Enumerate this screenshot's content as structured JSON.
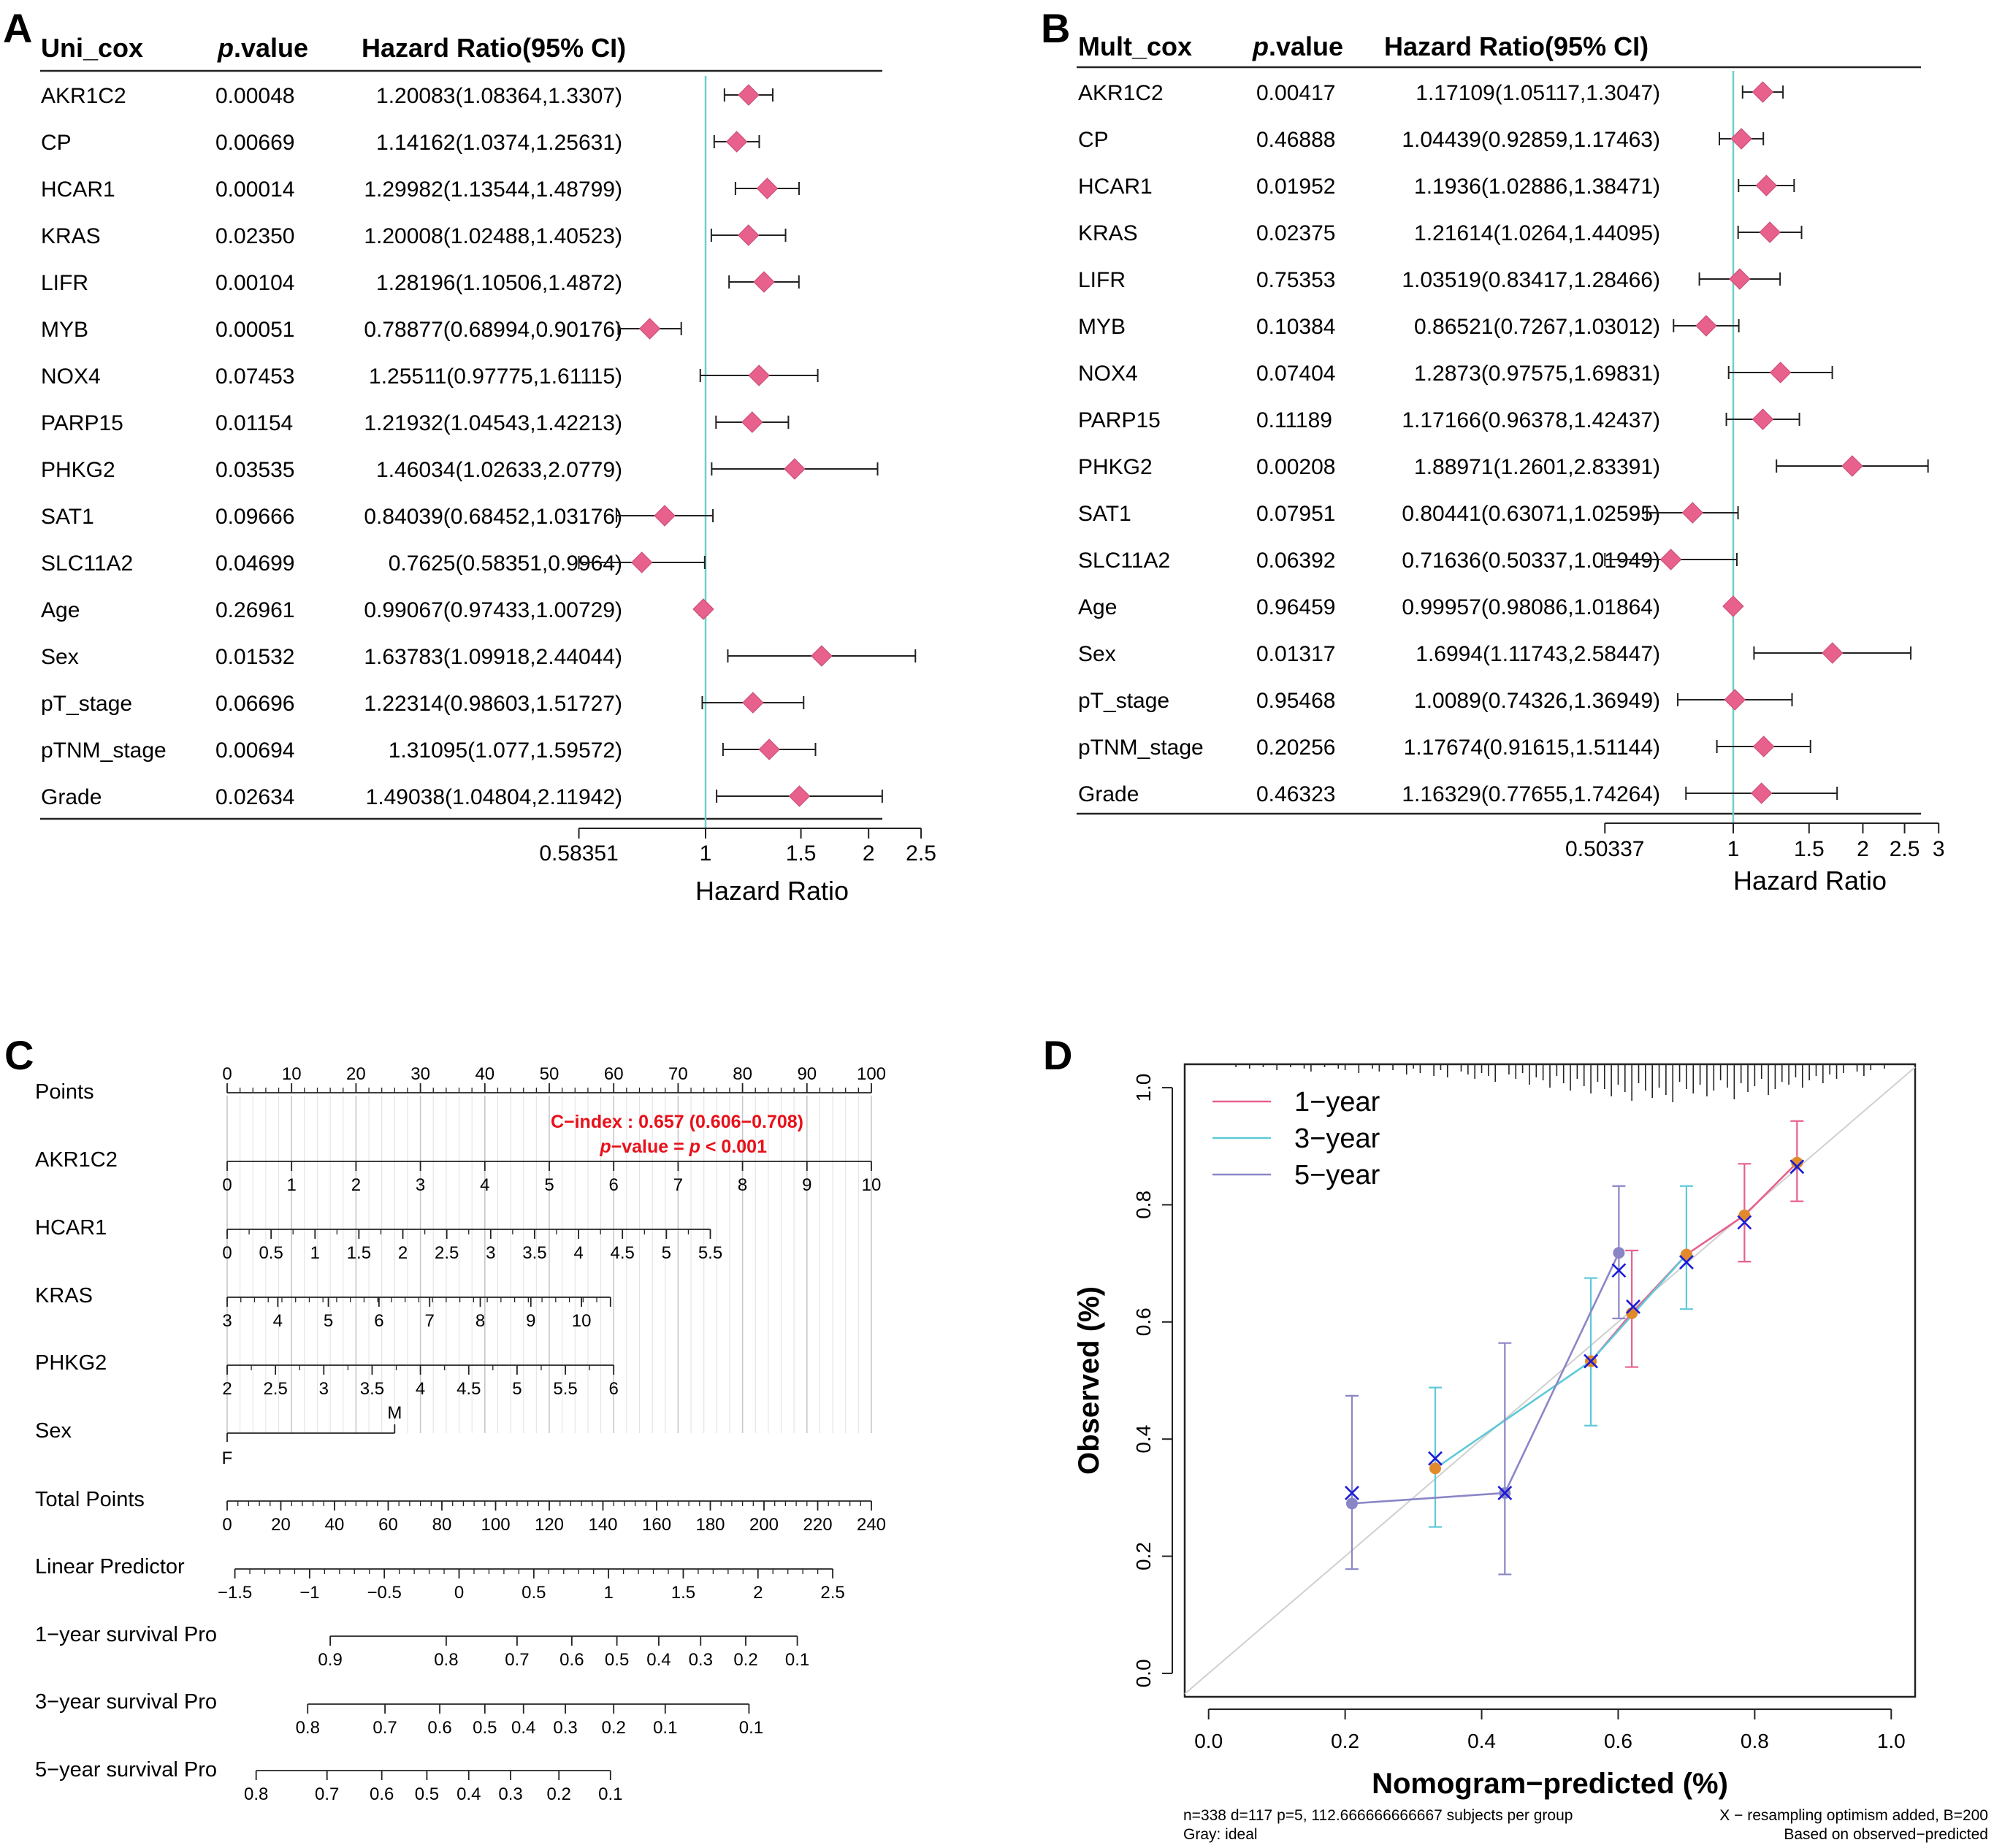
{
  "panels": {
    "A": {
      "letter": "A",
      "col_model": "Uni_cox",
      "col_p_italic": "p",
      "col_p_rest": ".value",
      "col_hr": "Hazard Ratio(95% CI)",
      "axis_title": "Hazard Ratio",
      "axis_ticks": [
        0.58351,
        1,
        1.5,
        2,
        2.5
      ],
      "axis_tick_labels": [
        "0.58351",
        "1",
        "1.5",
        "2",
        "2.5"
      ]
    },
    "B": {
      "letter": "B",
      "col_model": "Mult_cox",
      "col_p_italic": "p",
      "col_p_rest": ".value",
      "col_hr": "Hazard Ratio(95% CI)",
      "axis_title": "Hazard Ratio",
      "axis_ticks": [
        0.50337,
        1,
        1.5,
        2,
        2.5,
        3
      ],
      "axis_tick_labels": [
        "0.50337",
        "1",
        "1.5",
        "2",
        "2.5",
        "3"
      ]
    },
    "C": {
      "letter": "C"
    },
    "D": {
      "letter": "D"
    }
  },
  "chart_data": [
    {
      "type": "forest",
      "panel": "A",
      "title": "Uni_cox",
      "xlabel": "Hazard Ratio",
      "reference_line": 1,
      "accent_color": "#e8608c",
      "ref_color": "#6fcfc8",
      "rows": [
        {
          "name": "AKR1C2",
          "p": "0.00048",
          "hr_text": "1.20083(1.08364,1.3307)",
          "hr": 1.20083,
          "lo": 1.08364,
          "hi": 1.3307
        },
        {
          "name": "CP",
          "p": "0.00669",
          "hr_text": "1.14162(1.0374,1.25631)",
          "hr": 1.14162,
          "lo": 1.0374,
          "hi": 1.25631
        },
        {
          "name": "HCAR1",
          "p": "0.00014",
          "hr_text": "1.29982(1.13544,1.48799)",
          "hr": 1.29982,
          "lo": 1.13544,
          "hi": 1.48799
        },
        {
          "name": "KRAS",
          "p": "0.02350",
          "hr_text": "1.20008(1.02488,1.40523)",
          "hr": 1.20008,
          "lo": 1.02488,
          "hi": 1.40523
        },
        {
          "name": "LIFR",
          "p": "0.00104",
          "hr_text": "1.28196(1.10506,1.4872)",
          "hr": 1.28196,
          "lo": 1.10506,
          "hi": 1.4872
        },
        {
          "name": "MYB",
          "p": "0.00051",
          "hr_text": "0.78877(0.68994,0.90176)",
          "hr": 0.78877,
          "lo": 0.68994,
          "hi": 0.90176
        },
        {
          "name": "NOX4",
          "p": "0.07453",
          "hr_text": "1.25511(0.97775,1.61115)",
          "hr": 1.25511,
          "lo": 0.97775,
          "hi": 1.61115
        },
        {
          "name": "PARP15",
          "p": "0.01154",
          "hr_text": "1.21932(1.04543,1.42213)",
          "hr": 1.21932,
          "lo": 1.04543,
          "hi": 1.42213
        },
        {
          "name": "PHKG2",
          "p": "0.03535",
          "hr_text": "1.46034(1.02633,2.0779)",
          "hr": 1.46034,
          "lo": 1.02633,
          "hi": 2.0779
        },
        {
          "name": "SAT1",
          "p": "0.09666",
          "hr_text": "0.84039(0.68452,1.03176)",
          "hr": 0.84039,
          "lo": 0.68452,
          "hi": 1.03176
        },
        {
          "name": "SLC11A2",
          "p": "0.04699",
          "hr_text": "0.7625(0.58351,0.9964)",
          "hr": 0.7625,
          "lo": 0.58351,
          "hi": 0.9964
        },
        {
          "name": "Age",
          "p": "0.26961",
          "hr_text": "0.99067(0.97433,1.00729)",
          "hr": 0.99067,
          "lo": 0.97433,
          "hi": 1.00729
        },
        {
          "name": "Sex",
          "p": "0.01532",
          "hr_text": "1.63783(1.09918,2.44044)",
          "hr": 1.63783,
          "lo": 1.09918,
          "hi": 2.44044
        },
        {
          "name": "pT_stage",
          "p": "0.06696",
          "hr_text": "1.22314(0.98603,1.51727)",
          "hr": 1.22314,
          "lo": 0.98603,
          "hi": 1.51727
        },
        {
          "name": "pTNM_stage",
          "p": "0.00694",
          "hr_text": "1.31095(1.077,1.59572)",
          "hr": 1.31095,
          "lo": 1.077,
          "hi": 1.59572
        },
        {
          "name": "Grade",
          "p": "0.02634",
          "hr_text": "1.49038(1.04804,2.11942)",
          "hr": 1.49038,
          "lo": 1.04804,
          "hi": 2.11942
        }
      ]
    },
    {
      "type": "forest",
      "panel": "B",
      "title": "Mult_cox",
      "xlabel": "Hazard Ratio",
      "reference_line": 1,
      "accent_color": "#e8608c",
      "ref_color": "#6fcfc8",
      "rows": [
        {
          "name": "AKR1C2",
          "p": "0.00417",
          "hr_text": "1.17109(1.05117,1.3047)",
          "hr": 1.17109,
          "lo": 1.05117,
          "hi": 1.3047
        },
        {
          "name": "CP",
          "p": "0.46888",
          "hr_text": "1.04439(0.92859,1.17463)",
          "hr": 1.04439,
          "lo": 0.92859,
          "hi": 1.17463
        },
        {
          "name": "HCAR1",
          "p": "0.01952",
          "hr_text": "1.1936(1.02886,1.38471)",
          "hr": 1.1936,
          "lo": 1.02886,
          "hi": 1.38471
        },
        {
          "name": "KRAS",
          "p": "0.02375",
          "hr_text": "1.21614(1.0264,1.44095)",
          "hr": 1.21614,
          "lo": 1.0264,
          "hi": 1.44095
        },
        {
          "name": "LIFR",
          "p": "0.75353",
          "hr_text": "1.03519(0.83417,1.28466)",
          "hr": 1.03519,
          "lo": 0.83417,
          "hi": 1.28466
        },
        {
          "name": "MYB",
          "p": "0.10384",
          "hr_text": "0.86521(0.7267,1.03012)",
          "hr": 0.86521,
          "lo": 0.7267,
          "hi": 1.03012
        },
        {
          "name": "NOX4",
          "p": "0.07404",
          "hr_text": "1.2873(0.97575,1.69831)",
          "hr": 1.2873,
          "lo": 0.97575,
          "hi": 1.69831
        },
        {
          "name": "PARP15",
          "p": "0.11189",
          "hr_text": "1.17166(0.96378,1.42437)",
          "hr": 1.17166,
          "lo": 0.96378,
          "hi": 1.42437
        },
        {
          "name": "PHKG2",
          "p": "0.00208",
          "hr_text": "1.88971(1.2601,2.83391)",
          "hr": 1.88971,
          "lo": 1.2601,
          "hi": 2.83391
        },
        {
          "name": "SAT1",
          "p": "0.07951",
          "hr_text": "0.80441(0.63071,1.02595)",
          "hr": 0.80441,
          "lo": 0.63071,
          "hi": 1.02595
        },
        {
          "name": "SLC11A2",
          "p": "0.06392",
          "hr_text": "0.71636(0.50337,1.01949)",
          "hr": 0.71636,
          "lo": 0.50337,
          "hi": 1.01949
        },
        {
          "name": "Age",
          "p": "0.96459",
          "hr_text": "0.99957(0.98086,1.01864)",
          "hr": 0.99957,
          "lo": 0.98086,
          "hi": 1.01864
        },
        {
          "name": "Sex",
          "p": "0.01317",
          "hr_text": "1.6994(1.11743,2.58447)",
          "hr": 1.6994,
          "lo": 1.11743,
          "hi": 2.58447
        },
        {
          "name": "pT_stage",
          "p": "0.95468",
          "hr_text": "1.0089(0.74326,1.36949)",
          "hr": 1.0089,
          "lo": 0.74326,
          "hi": 1.36949
        },
        {
          "name": "pTNM_stage",
          "p": "0.20256",
          "hr_text": "1.17674(0.91615,1.51144)",
          "hr": 1.17674,
          "lo": 0.91615,
          "hi": 1.51144
        },
        {
          "name": "Grade",
          "p": "0.46323",
          "hr_text": "1.16329(0.77655,1.74264)",
          "hr": 1.16329,
          "lo": 0.77655,
          "hi": 1.74264
        }
      ]
    },
    {
      "type": "nomogram",
      "panel": "C",
      "cindex_text": "C−index : 0.657 (0.606−0.708)",
      "pvalue_italic": "p",
      "pvalue_rest": "−value = ",
      "pvalue_italic2": "p",
      "pvalue_rest2": " < 0.001",
      "annotation_color": "#e8101a",
      "points_max": 100,
      "scales": [
        {
          "label": "Points",
          "labels_above": true,
          "pts": [
            0,
            10,
            20,
            30,
            40,
            50,
            60,
            70,
            80,
            90,
            100
          ],
          "labels": [
            "0",
            "10",
            "20",
            "30",
            "40",
            "50",
            "60",
            "70",
            "80",
            "90",
            "100"
          ],
          "minor": 50
        },
        {
          "label": "AKR1C2",
          "pts": [
            0,
            10,
            20,
            30,
            40,
            50,
            60,
            70,
            80,
            90,
            100
          ],
          "labels": [
            "0",
            "1",
            "2",
            "3",
            "4",
            "5",
            "6",
            "7",
            "8",
            "9",
            "10"
          ]
        },
        {
          "label": "HCAR1",
          "pts": [
            0,
            6.82,
            13.64,
            20.45,
            27.27,
            34.09,
            40.91,
            47.73,
            54.55,
            61.36,
            68.18,
            75
          ],
          "labels": [
            "0",
            "0.5",
            "1",
            "1.5",
            "2",
            "2.5",
            "3",
            "3.5",
            "4",
            "4.5",
            "5",
            "5.5"
          ],
          "minor": 22
        },
        {
          "label": "KRAS",
          "pts": [
            0,
            7.86,
            15.71,
            23.57,
            31.43,
            39.29,
            47.14,
            55,
            59.5
          ],
          "labels": [
            "3",
            "4",
            "5",
            "6",
            "7",
            "8",
            "9",
            "10",
            ""
          ],
          "minor": 28
        },
        {
          "label": "PHKG2",
          "pts": [
            0,
            7.5,
            15,
            22.5,
            30,
            37.5,
            45,
            52.5,
            60
          ],
          "labels": [
            "2",
            "2.5",
            "3",
            "3.5",
            "4",
            "4.5",
            "5",
            "5.5",
            "6"
          ],
          "minor": 16
        },
        {
          "label": "Sex",
          "pts": [
            0,
            26
          ],
          "labels": [
            "F",
            "M"
          ],
          "sex": true
        },
        {
          "label": "Total Points",
          "pts": [
            0,
            8.33,
            16.67,
            25,
            33.33,
            41.67,
            50,
            58.33,
            66.67,
            75,
            83.33,
            91.67,
            100
          ],
          "labels": [
            "0",
            "20",
            "40",
            "60",
            "80",
            "100",
            "120",
            "140",
            "160",
            "180",
            "200",
            "220",
            "240"
          ],
          "minor": 60
        },
        {
          "label": "Linear Predictor",
          "pts": [
            1.2,
            12.8,
            24.4,
            36,
            47.6,
            59.2,
            70.8,
            82.4,
            94
          ],
          "labels": [
            "−1.5",
            "−1",
            "−0.5",
            "0",
            "0.5",
            "1",
            "1.5",
            "2",
            "2.5"
          ],
          "minor": 40
        },
        {
          "label": "1−year survival Pro",
          "pts": [
            16,
            34,
            45,
            53.5,
            60.5,
            67,
            73.5,
            80.5,
            88.5
          ],
          "labels": [
            "0.9",
            "0.8",
            "0.7",
            "0.6",
            "0.5",
            "0.4",
            "0.3",
            "0.2",
            "0.1"
          ]
        },
        {
          "label": "3−year survival Pro",
          "pts": [
            12.5,
            24.5,
            33,
            40,
            46,
            52.5,
            60,
            68,
            81
          ],
          "labels": [
            "0.8",
            "0.7",
            "0.6",
            "0.5",
            "0.4",
            "0.3",
            "0.2",
            "0.1",
            ""
          ],
          "extra_label": "0.1"
        },
        {
          "label": "5−year survival Pro",
          "pts": [
            4.5,
            15.5,
            24,
            31,
            37.5,
            44,
            51.5,
            59.5
          ],
          "labels": [
            "0.8",
            "0.7",
            "0.6",
            "0.5",
            "0.4",
            "0.3",
            "0.2",
            "0.1"
          ]
        }
      ]
    },
    {
      "type": "line",
      "panel": "D",
      "title": "",
      "xlabel": "Nomogram−predicted (%)",
      "ylabel": "Observed (%)",
      "xlim": [
        -0.035,
        1.035
      ],
      "ylim": [
        -0.04,
        1.04
      ],
      "xticks": [
        0.0,
        0.2,
        0.4,
        0.6,
        0.8,
        1.0
      ],
      "xtick_labels": [
        "0.0",
        "0.2",
        "0.4",
        "0.6",
        "0.8",
        "1.0"
      ],
      "yticks": [
        0.0,
        0.2,
        0.4,
        0.6,
        0.8,
        1.0
      ],
      "ytick_labels": [
        "0.0",
        "0.2",
        "0.4",
        "0.6",
        "0.8",
        "1.0"
      ],
      "ideal_color": "#d0d0d0",
      "rug": [
        0.04,
        0.06,
        0.08,
        0.1,
        0.12,
        0.14,
        0.15,
        0.17,
        0.19,
        0.2,
        0.22,
        0.24,
        0.25,
        0.27,
        0.29,
        0.3,
        0.31,
        0.33,
        0.34,
        0.35,
        0.37,
        0.38,
        0.39,
        0.4,
        0.41,
        0.42,
        0.44,
        0.45,
        0.46,
        0.47,
        0.48,
        0.49,
        0.5,
        0.51,
        0.52,
        0.53,
        0.54,
        0.55,
        0.56,
        0.57,
        0.58,
        0.59,
        0.6,
        0.61,
        0.62,
        0.63,
        0.64,
        0.65,
        0.66,
        0.67,
        0.68,
        0.69,
        0.7,
        0.71,
        0.72,
        0.73,
        0.74,
        0.75,
        0.76,
        0.77,
        0.78,
        0.79,
        0.8,
        0.81,
        0.82,
        0.83,
        0.84,
        0.85,
        0.86,
        0.87,
        0.88,
        0.89,
        0.9,
        0.91,
        0.92,
        0.93,
        0.95,
        0.96,
        0.97,
        0.99
      ],
      "rug_len": [
        2,
        3,
        2,
        4,
        2,
        3,
        5,
        2,
        3,
        4,
        6,
        3,
        5,
        4,
        7,
        3,
        6,
        8,
        4,
        9,
        5,
        7,
        10,
        6,
        8,
        12,
        7,
        10,
        6,
        14,
        9,
        11,
        16,
        8,
        13,
        18,
        10,
        15,
        20,
        12,
        17,
        22,
        14,
        19,
        25,
        13,
        18,
        23,
        16,
        21,
        26,
        12,
        17,
        20,
        14,
        22,
        18,
        11,
        16,
        24,
        13,
        19,
        15,
        10,
        21,
        17,
        12,
        14,
        9,
        16,
        11,
        8,
        13,
        7,
        10,
        6,
        5,
        8,
        4,
        3
      ],
      "series": [
        {
          "name": "1−year",
          "color": "#e8608c",
          "x": [
            0.56,
            0.62,
            0.7,
            0.785,
            0.862
          ],
          "y": [
            0.533,
            0.615,
            0.715,
            0.782,
            0.872
          ],
          "lo": [
            null,
            0.523,
            null,
            0.703,
            0.806
          ],
          "hi": [
            null,
            0.722,
            null,
            0.87,
            0.943
          ]
        },
        {
          "name": "3−year",
          "color": "#5fc9d8",
          "x": [
            0.332,
            0.56,
            0.7
          ],
          "y": [
            0.35,
            0.533,
            0.715
          ],
          "lo": [
            0.25,
            0.423,
            0.622
          ],
          "hi": [
            0.488,
            0.675,
            0.832
          ]
        },
        {
          "name": "5−year",
          "color": "#8a86c6",
          "x": [
            0.21,
            0.434,
            0.601
          ],
          "y": [
            0.29,
            0.308,
            0.718
          ],
          "lo": [
            0.178,
            0.169,
            0.606
          ],
          "hi": [
            0.474,
            0.564,
            0.832
          ]
        }
      ],
      "point_color": "#e08a2c",
      "cross_color": "#1a1ad8",
      "crosses": [
        [
          0.21,
          0.308
        ],
        [
          0.332,
          0.367
        ],
        [
          0.434,
          0.308
        ],
        [
          0.56,
          0.533
        ],
        [
          0.601,
          0.688
        ],
        [
          0.622,
          0.626
        ],
        [
          0.7,
          0.702
        ],
        [
          0.785,
          0.77
        ],
        [
          0.862,
          0.865
        ]
      ],
      "footer_left_1": "n=338 d=117 p=5, 112.666666666667 subjects per group",
      "footer_left_2": "Gray: ideal",
      "footer_right_1": "X − resampling optimism added, B=200",
      "footer_right_2": "Based on observed−predicted"
    }
  ]
}
